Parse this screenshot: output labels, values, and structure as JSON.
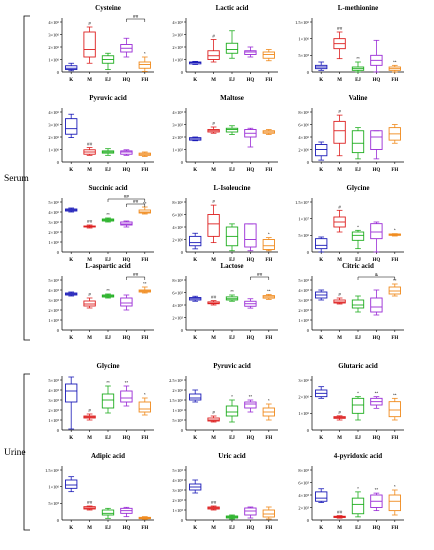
{
  "groups": [
    {
      "label": "Serum",
      "first_row": 0,
      "last_row": 3
    },
    {
      "label": "Urine",
      "first_row": 4,
      "last_row": 5
    }
  ],
  "chart_data": [
    {
      "type": "box",
      "title": "Cysteine",
      "categories": [
        "K",
        "M",
        "EJ",
        "HQ",
        "FH"
      ],
      "yticks": [
        "1×10⁶",
        "2×10⁶",
        "3×10⁶",
        "4×10⁶"
      ],
      "ylim": [
        0,
        4
      ],
      "boxes": [
        [
          0.1,
          0.2,
          0.3,
          0.5,
          0.7
        ],
        [
          0.7,
          1.2,
          1.8,
          3.2,
          3.6
        ],
        [
          0.2,
          0.7,
          1.0,
          1.3,
          1.5
        ],
        [
          1.2,
          1.6,
          1.9,
          2.2,
          2.7
        ],
        [
          0.05,
          0.3,
          0.6,
          0.8,
          1.2
        ]
      ],
      "sig": [
        "",
        "#",
        "",
        "",
        "*"
      ],
      "brackets": [
        {
          "from": 3,
          "to": 4,
          "text": "##"
        }
      ]
    },
    {
      "type": "box",
      "title": "Lactic acid",
      "categories": [
        "K",
        "M",
        "EJ",
        "HQ",
        "FH"
      ],
      "yticks": [
        "1×10⁵",
        "2×10⁵",
        "3×10⁵",
        "4×10⁵"
      ],
      "ylim": [
        0,
        4
      ],
      "boxes": [
        [
          0.6,
          0.65,
          0.75,
          0.8,
          0.85
        ],
        [
          0.8,
          1.0,
          1.3,
          1.7,
          2.6
        ],
        [
          1.1,
          1.5,
          1.8,
          2.3,
          3.3
        ],
        [
          1.2,
          1.4,
          1.6,
          1.7,
          2.0
        ],
        [
          0.9,
          1.1,
          1.4,
          1.6,
          1.8
        ]
      ],
      "sig": [
        "",
        "#",
        "",
        "",
        ""
      ],
      "brackets": []
    },
    {
      "type": "box",
      "title": "L-methionine",
      "categories": [
        "K",
        "M",
        "EJ",
        "HQ",
        "FH"
      ],
      "yticks": [
        "5×10⁵",
        "1×10⁶",
        "1.5×10⁶"
      ],
      "ylim": [
        0,
        1.5
      ],
      "boxes": [
        [
          0.05,
          0.1,
          0.15,
          0.2,
          0.3
        ],
        [
          0.4,
          0.7,
          0.85,
          1.0,
          1.2
        ],
        [
          0.0,
          0.05,
          0.1,
          0.15,
          0.3
        ],
        [
          0.0,
          0.2,
          0.35,
          0.5,
          0.95
        ],
        [
          0.0,
          0.05,
          0.1,
          0.15,
          0.2
        ]
      ],
      "sig": [
        "",
        "##",
        "**",
        "",
        "**"
      ],
      "brackets": []
    },
    {
      "type": "box",
      "title": "Pyruvic acid",
      "categories": [
        "K",
        "M",
        "EJ",
        "HQ",
        "FH"
      ],
      "yticks": [
        "1×10⁶",
        "2×10⁶",
        "3×10⁶",
        "4×10⁶"
      ],
      "ylim": [
        0,
        4.5
      ],
      "boxes": [
        [
          2.2,
          2.5,
          3.0,
          3.9,
          4.3
        ],
        [
          0.6,
          0.7,
          0.9,
          1.1,
          1.3
        ],
        [
          0.6,
          0.8,
          0.9,
          1.0,
          1.2
        ],
        [
          0.6,
          0.7,
          0.9,
          1.0,
          1.1
        ],
        [
          0.5,
          0.6,
          0.7,
          0.8,
          0.9
        ]
      ],
      "sig": [
        "",
        "##",
        "",
        "",
        ""
      ],
      "brackets": []
    },
    {
      "type": "box",
      "title": "Maltose",
      "categories": [
        "K",
        "M",
        "EJ",
        "HQ",
        "FH"
      ],
      "yticks": [
        "1×10⁵",
        "2×10⁵",
        "3×10⁵",
        "4×10⁵"
      ],
      "ylim": [
        0,
        4
      ],
      "boxes": [
        [
          1.7,
          1.75,
          1.85,
          1.95,
          2.0
        ],
        [
          2.3,
          2.4,
          2.5,
          2.6,
          2.8
        ],
        [
          2.2,
          2.4,
          2.6,
          2.7,
          2.9
        ],
        [
          1.2,
          2.0,
          2.3,
          2.6,
          2.7
        ],
        [
          2.2,
          2.3,
          2.4,
          2.5,
          2.6
        ]
      ],
      "sig": [
        "",
        "#",
        "",
        "",
        ""
      ],
      "brackets": []
    },
    {
      "type": "box",
      "title": "Valine",
      "categories": [
        "K",
        "M",
        "EJ",
        "HQ",
        "FH"
      ],
      "yticks": [
        "2×10⁶",
        "4×10⁶",
        "6×10⁶",
        "8×10⁶"
      ],
      "ylim": [
        0,
        8
      ],
      "boxes": [
        [
          0.3,
          1.0,
          2.0,
          2.8,
          3.2
        ],
        [
          1.0,
          3.0,
          5.0,
          6.5,
          7.5
        ],
        [
          0.5,
          1.5,
          3.0,
          5.0,
          5.5
        ],
        [
          0.5,
          2.0,
          4.0,
          5.0,
          5.0
        ],
        [
          3.0,
          3.5,
          4.5,
          5.5,
          6.0
        ]
      ],
      "sig": [
        "",
        "#",
        "",
        "",
        ""
      ],
      "brackets": []
    },
    {
      "type": "box",
      "title": "Succinic acid",
      "categories": [
        "K",
        "M",
        "EJ",
        "HQ",
        "FH"
      ],
      "yticks": [
        "1×10⁶",
        "2×10⁶",
        "3×10⁶",
        "4×10⁶",
        "5×10⁶"
      ],
      "ylim": [
        0,
        5
      ],
      "boxes": [
        [
          4.0,
          4.1,
          4.2,
          4.3,
          4.4
        ],
        [
          2.4,
          2.5,
          2.55,
          2.6,
          2.7
        ],
        [
          3.0,
          3.1,
          3.2,
          3.3,
          3.4
        ],
        [
          2.5,
          2.7,
          2.8,
          3.0,
          3.1
        ],
        [
          3.8,
          3.9,
          4.0,
          4.2,
          4.5
        ]
      ],
      "sig": [
        "",
        "##",
        "**",
        "",
        "**"
      ],
      "brackets": [
        {
          "from": 2,
          "to": 4,
          "text": "##"
        },
        {
          "from": 3,
          "to": 4,
          "text": "##"
        }
      ]
    },
    {
      "type": "box",
      "title": "L-Isoleucine",
      "categories": [
        "K",
        "M",
        "EJ",
        "HQ",
        "FH"
      ],
      "yticks": [
        "2×10⁶",
        "4×10⁶",
        "6×10⁶",
        "8×10⁶"
      ],
      "ylim": [
        0,
        8
      ],
      "boxes": [
        [
          0.5,
          1.0,
          1.5,
          2.5,
          3.0
        ],
        [
          1.5,
          2.5,
          4.5,
          6.0,
          7.5
        ],
        [
          0.2,
          1.0,
          2.5,
          4.0,
          4.5
        ],
        [
          0.2,
          0.8,
          2.0,
          4.5,
          4.5
        ],
        [
          0.2,
          0.4,
          1.0,
          2.0,
          2.3
        ]
      ],
      "sig": [
        "",
        "#",
        "",
        "",
        "*"
      ],
      "brackets": []
    },
    {
      "type": "box",
      "title": "Glycine",
      "categories": [
        "K",
        "M",
        "EJ",
        "HQ",
        "FH"
      ],
      "yticks": [
        "5×10⁶",
        "1×10⁷",
        "1.5×10⁷"
      ],
      "ylim": [
        0,
        1.5
      ],
      "boxes": [
        [
          0.0,
          0.1,
          0.2,
          0.4,
          0.45
        ],
        [
          0.6,
          0.75,
          0.9,
          1.05,
          1.25
        ],
        [
          0.1,
          0.35,
          0.5,
          0.6,
          0.65
        ],
        [
          0.0,
          0.4,
          0.6,
          0.85,
          0.9
        ],
        [
          0.48,
          0.5,
          0.52,
          0.54,
          0.55
        ]
      ],
      "sig": [
        "",
        "#",
        "*",
        "",
        "*"
      ],
      "brackets": []
    },
    {
      "type": "box",
      "title": "L-aspartic acid",
      "categories": [
        "K",
        "M",
        "EJ",
        "HQ",
        "FH"
      ],
      "yticks": [
        "1×10⁵",
        "2×10⁵",
        "3×10⁵",
        "4×10⁵",
        "5×10⁵"
      ],
      "ylim": [
        0,
        5
      ],
      "boxes": [
        [
          3.4,
          3.5,
          3.6,
          3.7,
          3.8
        ],
        [
          2.2,
          2.4,
          2.6,
          2.9,
          3.2
        ],
        [
          3.2,
          3.3,
          3.4,
          3.5,
          3.6
        ],
        [
          2.0,
          2.4,
          2.7,
          3.2,
          3.5
        ],
        [
          3.7,
          3.8,
          3.9,
          4.0,
          4.3
        ]
      ],
      "sig": [
        "",
        "#",
        "**",
        "",
        "**"
      ],
      "brackets": [
        {
          "from": 3,
          "to": 4,
          "text": "##"
        }
      ]
    },
    {
      "type": "box",
      "title": "Lactose",
      "categories": [
        "K",
        "M",
        "EJ",
        "HQ",
        "FH"
      ],
      "yticks": [
        "2×10⁵",
        "4×10⁵",
        "6×10⁵",
        "8×10⁵"
      ],
      "ylim": [
        0,
        8
      ],
      "boxes": [
        [
          4.6,
          4.8,
          5.0,
          5.2,
          5.4
        ],
        [
          4.0,
          4.2,
          4.3,
          4.5,
          4.7
        ],
        [
          4.6,
          4.8,
          5.0,
          5.3,
          5.6
        ],
        [
          3.5,
          3.8,
          4.2,
          4.6,
          5.0
        ],
        [
          4.9,
          5.1,
          5.3,
          5.5,
          5.7
        ]
      ],
      "sig": [
        "",
        "##",
        "**",
        "",
        "**"
      ],
      "brackets": [
        {
          "from": 3,
          "to": 4,
          "text": "##"
        }
      ]
    },
    {
      "type": "box",
      "title": "Citric acid",
      "categories": [
        "K",
        "M",
        "EJ",
        "HQ",
        "FH"
      ],
      "yticks": [
        "1×10⁵",
        "2×10⁵",
        "3×10⁵",
        "4×10⁵",
        "5×10⁵"
      ],
      "ylim": [
        0,
        5
      ],
      "boxes": [
        [
          3.0,
          3.2,
          3.5,
          3.8,
          4.0
        ],
        [
          2.6,
          2.7,
          2.8,
          3.0,
          3.2
        ],
        [
          1.8,
          2.2,
          2.5,
          3.0,
          3.4
        ],
        [
          1.5,
          1.8,
          2.3,
          3.2,
          4.0
        ],
        [
          3.4,
          3.6,
          3.9,
          4.3,
          4.6
        ]
      ],
      "sig": [
        "",
        "#",
        "",
        "",
        "**"
      ],
      "brackets": [
        {
          "from": 2,
          "to": 4,
          "text": "&"
        }
      ]
    },
    {
      "type": "box",
      "title": "Glycine",
      "categories": [
        "K",
        "M",
        "EJ",
        "HQ",
        "FH"
      ],
      "yticks": [
        "1×10⁵",
        "2×10⁵",
        "3×10⁵",
        "4×10⁵",
        "5×10⁵"
      ],
      "ylim": [
        0,
        5
      ],
      "boxes": [
        [
          0.1,
          2.8,
          3.9,
          4.6,
          5.3
        ],
        [
          1.0,
          1.2,
          1.3,
          1.4,
          1.6
        ],
        [
          1.7,
          2.2,
          3.0,
          3.6,
          4.4
        ],
        [
          2.4,
          2.8,
          3.2,
          3.9,
          4.4
        ],
        [
          1.5,
          1.8,
          2.1,
          2.8,
          3.2
        ]
      ],
      "sig": [
        "",
        "#",
        "**",
        "**",
        "*"
      ],
      "brackets": []
    },
    {
      "type": "box",
      "title": "Pyruvic acid",
      "categories": [
        "K",
        "M",
        "EJ",
        "HQ",
        "FH"
      ],
      "yticks": [
        "5×10⁵",
        "1×10⁶",
        "1.5×10⁶",
        "2×10⁶",
        "2.5×10⁶"
      ],
      "ylim": [
        0,
        2.5
      ],
      "boxes": [
        [
          1.4,
          1.5,
          1.6,
          1.8,
          2.0
        ],
        [
          0.4,
          0.45,
          0.5,
          0.6,
          0.7
        ],
        [
          0.4,
          0.7,
          0.9,
          1.2,
          1.5
        ],
        [
          0.9,
          1.1,
          1.3,
          1.4,
          1.5
        ],
        [
          0.5,
          0.7,
          0.9,
          1.1,
          1.3
        ]
      ],
      "sig": [
        "",
        "#",
        "*",
        "**",
        "*"
      ],
      "brackets": []
    },
    {
      "type": "box",
      "title": "Glutaric acid",
      "categories": [
        "K",
        "M",
        "EJ",
        "HQ",
        "FH"
      ],
      "yticks": [
        "1×10⁶",
        "2×10⁶",
        "3×10⁶"
      ],
      "ylim": [
        0,
        3
      ],
      "boxes": [
        [
          1.9,
          2.0,
          2.2,
          2.4,
          2.6
        ],
        [
          0.6,
          0.7,
          0.75,
          0.8,
          0.85
        ],
        [
          0.6,
          1.0,
          1.5,
          1.9,
          2.0
        ],
        [
          1.3,
          1.5,
          1.7,
          1.9,
          2.0
        ],
        [
          0.6,
          0.8,
          1.2,
          1.7,
          1.9
        ]
      ],
      "sig": [
        "",
        "#",
        "*",
        "**",
        "**"
      ],
      "brackets": []
    },
    {
      "type": "box",
      "title": "Adipic acid",
      "categories": [
        "K",
        "M",
        "EJ",
        "HQ",
        "FH"
      ],
      "yticks": [
        "5×10⁵",
        "1×10⁶",
        "1.5×10⁶"
      ],
      "ylim": [
        0,
        1.5
      ],
      "boxes": [
        [
          0.85,
          0.95,
          1.05,
          1.2,
          1.3
        ],
        [
          0.3,
          0.33,
          0.36,
          0.4,
          0.42
        ],
        [
          0.05,
          0.15,
          0.2,
          0.3,
          0.35
        ],
        [
          0.1,
          0.2,
          0.28,
          0.35,
          0.38
        ],
        [
          0.02,
          0.04,
          0.06,
          0.08,
          0.1
        ]
      ],
      "sig": [
        "",
        "##",
        "",
        "",
        ""
      ],
      "brackets": []
    },
    {
      "type": "box",
      "title": "Uric acid",
      "categories": [
        "K",
        "M",
        "EJ",
        "HQ",
        "FH"
      ],
      "yticks": [
        "1×10⁵",
        "2×10⁵",
        "3×10⁵",
        "4×10⁵",
        "5×10⁵"
      ],
      "ylim": [
        0,
        5
      ],
      "boxes": [
        [
          2.7,
          3.0,
          3.3,
          3.6,
          4.0
        ],
        [
          1.0,
          1.1,
          1.2,
          1.3,
          1.4
        ],
        [
          0.1,
          0.2,
          0.3,
          0.4,
          0.5
        ],
        [
          0.2,
          0.5,
          0.9,
          1.2,
          1.3
        ],
        [
          0.1,
          0.3,
          0.6,
          1.0,
          1.3
        ]
      ],
      "sig": [
        "",
        "##",
        "",
        "",
        ""
      ],
      "brackets": []
    },
    {
      "type": "box",
      "title": "4-pyridoxic acid",
      "categories": [
        "K",
        "M",
        "EJ",
        "HQ",
        "FH"
      ],
      "yticks": [
        "2×10⁵",
        "4×10⁵",
        "6×10⁵",
        "8×10⁵"
      ],
      "ylim": [
        0,
        8
      ],
      "boxes": [
        [
          2.8,
          3.0,
          3.5,
          4.5,
          5.0
        ],
        [
          0.3,
          0.4,
          0.5,
          0.6,
          0.7
        ],
        [
          0.5,
          1.0,
          2.5,
          3.5,
          4.5
        ],
        [
          1.5,
          2.0,
          3.0,
          4.0,
          4.3
        ],
        [
          0.8,
          1.5,
          3.0,
          4.0,
          4.8
        ]
      ],
      "sig": [
        "",
        "##",
        "*",
        "**",
        "*"
      ],
      "brackets": []
    }
  ],
  "colors": [
    "#1a1ab8",
    "#dd1f1f",
    "#1fae1f",
    "#9a2bd6",
    "#f08a1c"
  ]
}
